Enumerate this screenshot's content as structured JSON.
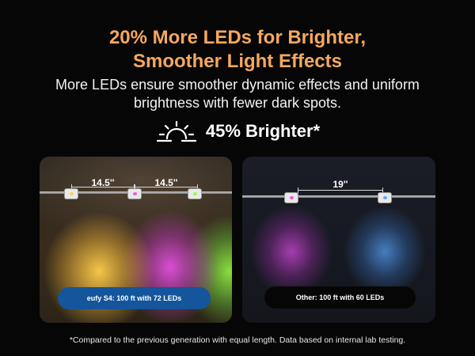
{
  "headline": {
    "line1": "20% More LEDs for Brighter,",
    "line2": "Smoother Light Effects"
  },
  "subhead": {
    "line1": "More LEDs ensure smoother dynamic effects and uniform",
    "line2": "brightness with fewer dark spots."
  },
  "highlight": {
    "icon": "sun-rising-icon",
    "text": "45% Brighter*"
  },
  "comparison": {
    "left": {
      "spacing_labels": [
        "14.5''",
        "14.5''"
      ],
      "lights": [
        "yellow",
        "pink",
        "green"
      ],
      "caption": "eufy S4: 100 ft with 72 LEDs"
    },
    "right": {
      "spacing_labels": [
        "19''"
      ],
      "lights": [
        "pink",
        "blue"
      ],
      "caption": "Other: 100 ft with 60 LEDs"
    }
  },
  "footnote": "*Compared to the previous generation with equal length. Data based on internal lab testing.",
  "colors": {
    "headline": "#f6a85e",
    "background": "#060606",
    "left_caption_pill": "#14559b",
    "right_caption_pill": "#060606"
  }
}
